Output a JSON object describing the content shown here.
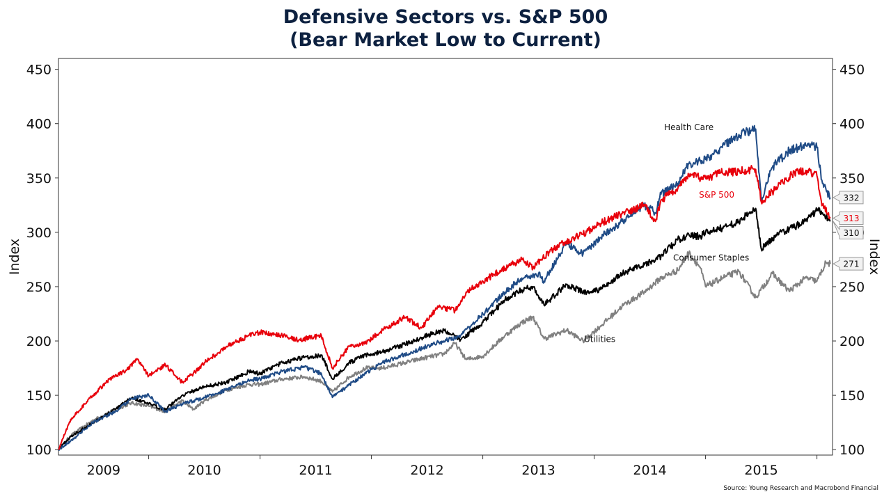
{
  "chart_data": {
    "type": "line",
    "title": "Defensive Sectors vs. S&P 500",
    "subtitle": "(Bear Market Low to Current)",
    "ylabel_left": "Index",
    "ylabel_right": "Index",
    "ylim": [
      95,
      460
    ],
    "yticks": [
      100,
      150,
      200,
      250,
      300,
      350,
      400,
      450
    ],
    "xlim": [
      2009.19,
      2016.14
    ],
    "xtick_labels": [
      "2009",
      "2010",
      "2011",
      "2012",
      "2013",
      "2014",
      "2015"
    ],
    "source": "Source: Young Research and Macrobond Financial",
    "grid": false,
    "series": [
      {
        "name": "Utilities",
        "color": "#808080",
        "end_label": "271",
        "points": [
          [
            2009.19,
            100
          ],
          [
            2009.3,
            113
          ],
          [
            2009.5,
            127
          ],
          [
            2009.7,
            137
          ],
          [
            2009.85,
            143
          ],
          [
            2010.0,
            140
          ],
          [
            2010.15,
            135
          ],
          [
            2010.3,
            145
          ],
          [
            2010.4,
            137
          ],
          [
            2010.5,
            145
          ],
          [
            2010.7,
            155
          ],
          [
            2010.9,
            160
          ],
          [
            2011.0,
            160
          ],
          [
            2011.2,
            165
          ],
          [
            2011.4,
            167
          ],
          [
            2011.55,
            163
          ],
          [
            2011.65,
            153
          ],
          [
            2011.8,
            167
          ],
          [
            2011.95,
            175
          ],
          [
            2012.1,
            175
          ],
          [
            2012.3,
            180
          ],
          [
            2012.5,
            185
          ],
          [
            2012.65,
            188
          ],
          [
            2012.75,
            198
          ],
          [
            2012.85,
            183
          ],
          [
            2013.0,
            186
          ],
          [
            2013.2,
            205
          ],
          [
            2013.35,
            217
          ],
          [
            2013.45,
            222
          ],
          [
            2013.55,
            202
          ],
          [
            2013.75,
            210
          ],
          [
            2013.9,
            200
          ],
          [
            2014.05,
            213
          ],
          [
            2014.25,
            232
          ],
          [
            2014.45,
            245
          ],
          [
            2014.6,
            258
          ],
          [
            2014.75,
            265
          ],
          [
            2014.85,
            281
          ],
          [
            2014.95,
            268
          ],
          [
            2015.0,
            250
          ],
          [
            2015.15,
            258
          ],
          [
            2015.3,
            264
          ],
          [
            2015.45,
            240
          ],
          [
            2015.6,
            262
          ],
          [
            2015.75,
            246
          ],
          [
            2015.9,
            258
          ],
          [
            2016.0,
            255
          ],
          [
            2016.08,
            272
          ],
          [
            2016.12,
            271
          ]
        ]
      },
      {
        "name": "Consumer Staples",
        "color": "#000000",
        "end_label": "310",
        "points": [
          [
            2009.19,
            100
          ],
          [
            2009.3,
            112
          ],
          [
            2009.5,
            125
          ],
          [
            2009.7,
            137
          ],
          [
            2009.85,
            148
          ],
          [
            2010.0,
            142
          ],
          [
            2010.15,
            137
          ],
          [
            2010.3,
            150
          ],
          [
            2010.5,
            158
          ],
          [
            2010.7,
            162
          ],
          [
            2010.9,
            172
          ],
          [
            2011.0,
            170
          ],
          [
            2011.2,
            180
          ],
          [
            2011.4,
            185
          ],
          [
            2011.55,
            187
          ],
          [
            2011.65,
            165
          ],
          [
            2011.8,
            180
          ],
          [
            2011.95,
            187
          ],
          [
            2012.1,
            190
          ],
          [
            2012.3,
            197
          ],
          [
            2012.5,
            205
          ],
          [
            2012.65,
            210
          ],
          [
            2012.8,
            201
          ],
          [
            2013.0,
            217
          ],
          [
            2013.2,
            238
          ],
          [
            2013.35,
            247
          ],
          [
            2013.45,
            250
          ],
          [
            2013.55,
            233
          ],
          [
            2013.75,
            252
          ],
          [
            2013.9,
            245
          ],
          [
            2014.05,
            247
          ],
          [
            2014.25,
            262
          ],
          [
            2014.45,
            270
          ],
          [
            2014.6,
            278
          ],
          [
            2014.75,
            293
          ],
          [
            2014.85,
            298
          ],
          [
            2014.95,
            296
          ],
          [
            2015.0,
            300
          ],
          [
            2015.15,
            304
          ],
          [
            2015.3,
            310
          ],
          [
            2015.45,
            322
          ],
          [
            2015.5,
            285
          ],
          [
            2015.65,
            298
          ],
          [
            2015.8,
            305
          ],
          [
            2015.9,
            312
          ],
          [
            2016.0,
            320
          ],
          [
            2016.05,
            318
          ],
          [
            2016.12,
            310
          ]
        ]
      },
      {
        "name": "Health Care",
        "color": "#1f4b86",
        "end_label": "332",
        "points": [
          [
            2009.19,
            100
          ],
          [
            2009.3,
            108
          ],
          [
            2009.5,
            125
          ],
          [
            2009.7,
            135
          ],
          [
            2009.85,
            147
          ],
          [
            2010.0,
            150
          ],
          [
            2010.15,
            135
          ],
          [
            2010.3,
            142
          ],
          [
            2010.5,
            148
          ],
          [
            2010.7,
            155
          ],
          [
            2010.9,
            164
          ],
          [
            2011.0,
            165
          ],
          [
            2011.2,
            172
          ],
          [
            2011.4,
            176
          ],
          [
            2011.55,
            170
          ],
          [
            2011.65,
            148
          ],
          [
            2011.8,
            160
          ],
          [
            2011.95,
            170
          ],
          [
            2012.1,
            180
          ],
          [
            2012.3,
            188
          ],
          [
            2012.5,
            195
          ],
          [
            2012.65,
            200
          ],
          [
            2012.8,
            205
          ],
          [
            2013.0,
            225
          ],
          [
            2013.2,
            245
          ],
          [
            2013.35,
            258
          ],
          [
            2013.5,
            262
          ],
          [
            2013.55,
            255
          ],
          [
            2013.75,
            290
          ],
          [
            2013.9,
            280
          ],
          [
            2014.05,
            295
          ],
          [
            2014.25,
            310
          ],
          [
            2014.45,
            325
          ],
          [
            2014.55,
            318
          ],
          [
            2014.6,
            335
          ],
          [
            2014.75,
            345
          ],
          [
            2014.85,
            363
          ],
          [
            2015.0,
            367
          ],
          [
            2015.15,
            378
          ],
          [
            2015.3,
            390
          ],
          [
            2015.45,
            395
          ],
          [
            2015.5,
            330
          ],
          [
            2015.6,
            360
          ],
          [
            2015.75,
            375
          ],
          [
            2015.9,
            380
          ],
          [
            2016.0,
            378
          ],
          [
            2016.05,
            345
          ],
          [
            2016.12,
            332
          ]
        ]
      },
      {
        "name": "S&P 500",
        "color": "#e8000b",
        "end_label": "313",
        "points": [
          [
            2009.19,
            100
          ],
          [
            2009.3,
            128
          ],
          [
            2009.5,
            150
          ],
          [
            2009.65,
            165
          ],
          [
            2009.8,
            173
          ],
          [
            2009.9,
            183
          ],
          [
            2010.0,
            168
          ],
          [
            2010.15,
            178
          ],
          [
            2010.3,
            162
          ],
          [
            2010.4,
            170
          ],
          [
            2010.5,
            180
          ],
          [
            2010.7,
            195
          ],
          [
            2010.9,
            205
          ],
          [
            2011.0,
            208
          ],
          [
            2011.2,
            205
          ],
          [
            2011.35,
            201
          ],
          [
            2011.55,
            205
          ],
          [
            2011.65,
            175
          ],
          [
            2011.8,
            195
          ],
          [
            2011.95,
            198
          ],
          [
            2012.1,
            210
          ],
          [
            2012.3,
            222
          ],
          [
            2012.45,
            212
          ],
          [
            2012.6,
            232
          ],
          [
            2012.75,
            228
          ],
          [
            2012.85,
            245
          ],
          [
            2013.0,
            255
          ],
          [
            2013.2,
            267
          ],
          [
            2013.35,
            275
          ],
          [
            2013.45,
            268
          ],
          [
            2013.6,
            282
          ],
          [
            2013.75,
            292
          ],
          [
            2013.9,
            298
          ],
          [
            2014.05,
            308
          ],
          [
            2014.25,
            317
          ],
          [
            2014.45,
            325
          ],
          [
            2014.55,
            310
          ],
          [
            2014.6,
            330
          ],
          [
            2014.75,
            340
          ],
          [
            2014.85,
            352
          ],
          [
            2015.0,
            350
          ],
          [
            2015.15,
            355
          ],
          [
            2015.3,
            356
          ],
          [
            2015.45,
            358
          ],
          [
            2015.5,
            328
          ],
          [
            2015.65,
            342
          ],
          [
            2015.8,
            355
          ],
          [
            2015.9,
            357
          ],
          [
            2016.0,
            352
          ],
          [
            2016.05,
            325
          ],
          [
            2016.12,
            313
          ]
        ]
      }
    ],
    "annotations": [
      {
        "text": "Health Care",
        "x": 2014.85,
        "y": 394,
        "color": "#111111"
      },
      {
        "text": "S&P 500",
        "x": 2015.1,
        "y": 332,
        "color": "#e8000b"
      },
      {
        "text": "Consumer Staples",
        "x": 2015.05,
        "y": 274,
        "color": "#111111"
      },
      {
        "text": "Utilities",
        "x": 2014.05,
        "y": 199,
        "color": "#111111"
      }
    ]
  }
}
